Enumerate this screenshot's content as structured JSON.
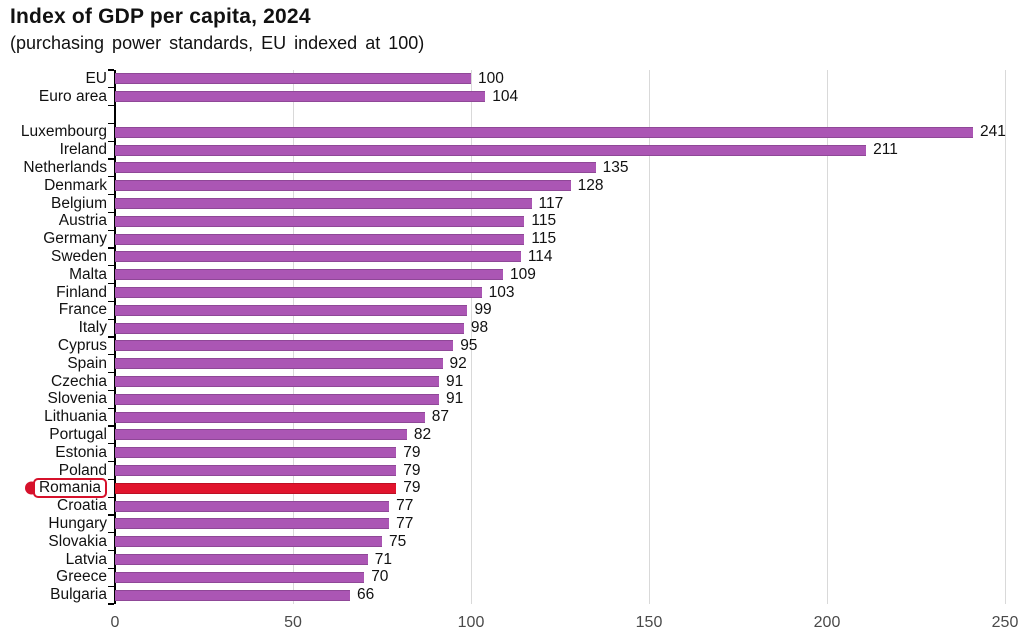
{
  "header": {
    "title": "Index of GDP per capita, 2024",
    "subtitle": "(purchasing power standards, EU indexed at 100)"
  },
  "colors": {
    "bar": "#AB56B4",
    "highlight_bar": "#E1142D",
    "annotation_red": "#D6112B",
    "grid": "#D9D9D9",
    "axis": "#000000",
    "text": "#111111",
    "tick_label": "#4A4A4A"
  },
  "chart_data": {
    "type": "bar",
    "orientation": "horizontal",
    "title": "Index of GDP per capita, 2024",
    "subtitle": "(purchasing power standards, EU indexed at 100)",
    "xlim": [
      0,
      250
    ],
    "x_ticks": [
      0,
      50,
      100,
      150,
      200,
      250
    ],
    "grid": true,
    "legend": "none",
    "highlighted_category": "Romania",
    "rows": [
      {
        "label": "EU",
        "value": 100
      },
      {
        "label": "Euro area",
        "value": 104
      },
      {
        "spacer": true
      },
      {
        "label": "Luxembourg",
        "value": 241
      },
      {
        "label": "Ireland",
        "value": 211
      },
      {
        "label": "Netherlands",
        "value": 135
      },
      {
        "label": "Denmark",
        "value": 128
      },
      {
        "label": "Belgium",
        "value": 117
      },
      {
        "label": "Austria",
        "value": 115
      },
      {
        "label": "Germany",
        "value": 115
      },
      {
        "label": "Sweden",
        "value": 114
      },
      {
        "label": "Malta",
        "value": 109
      },
      {
        "label": "Finland",
        "value": 103
      },
      {
        "label": "France",
        "value": 99
      },
      {
        "label": "Italy",
        "value": 98
      },
      {
        "label": "Cyprus",
        "value": 95
      },
      {
        "label": "Spain",
        "value": 92
      },
      {
        "label": "Czechia",
        "value": 91
      },
      {
        "label": "Slovenia",
        "value": 91
      },
      {
        "label": "Lithuania",
        "value": 87
      },
      {
        "label": "Portugal",
        "value": 82
      },
      {
        "label": "Estonia",
        "value": 79
      },
      {
        "label": "Poland",
        "value": 79
      },
      {
        "label": "Romania",
        "value": 79,
        "highlight": true
      },
      {
        "label": "Croatia",
        "value": 77
      },
      {
        "label": "Hungary",
        "value": 77
      },
      {
        "label": "Slovakia",
        "value": 75
      },
      {
        "label": "Latvia",
        "value": 71
      },
      {
        "label": "Greece",
        "value": 70
      },
      {
        "label": "Bulgaria",
        "value": 66
      }
    ]
  }
}
